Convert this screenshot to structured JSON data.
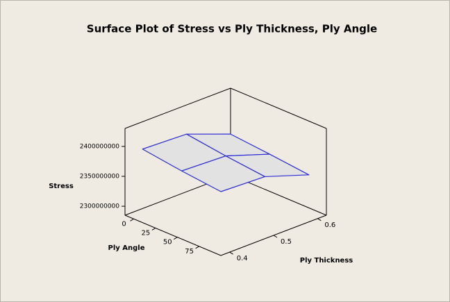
{
  "chart_data": {
    "type": "surface",
    "title": "Surface Plot of Stress vs Ply Thickness, Ply Angle",
    "x_label": "Ply Thickness",
    "y_label": "Ply Angle",
    "z_label": "Stress",
    "x": [
      0.4,
      0.5,
      0.6
    ],
    "y": [
      0,
      45,
      90
    ],
    "z": [
      [
        2396000000,
        2393000000,
        2365000000
      ],
      [
        2387000000,
        2384000000,
        2359000000
      ],
      [
        2380000000,
        2377000000,
        2352000000
      ]
    ],
    "xlim": [
      0.38,
      0.62
    ],
    "xticks": [
      0.4,
      0.5,
      0.6
    ],
    "ylim": [
      -10,
      100
    ],
    "yticks": [
      0,
      25,
      50,
      75
    ],
    "zlim": [
      2285000000,
      2430000000
    ],
    "zticks": [
      2300000000,
      2350000000,
      2400000000
    ],
    "color": "#2b2bd6",
    "fill": "#e2e2e2"
  }
}
